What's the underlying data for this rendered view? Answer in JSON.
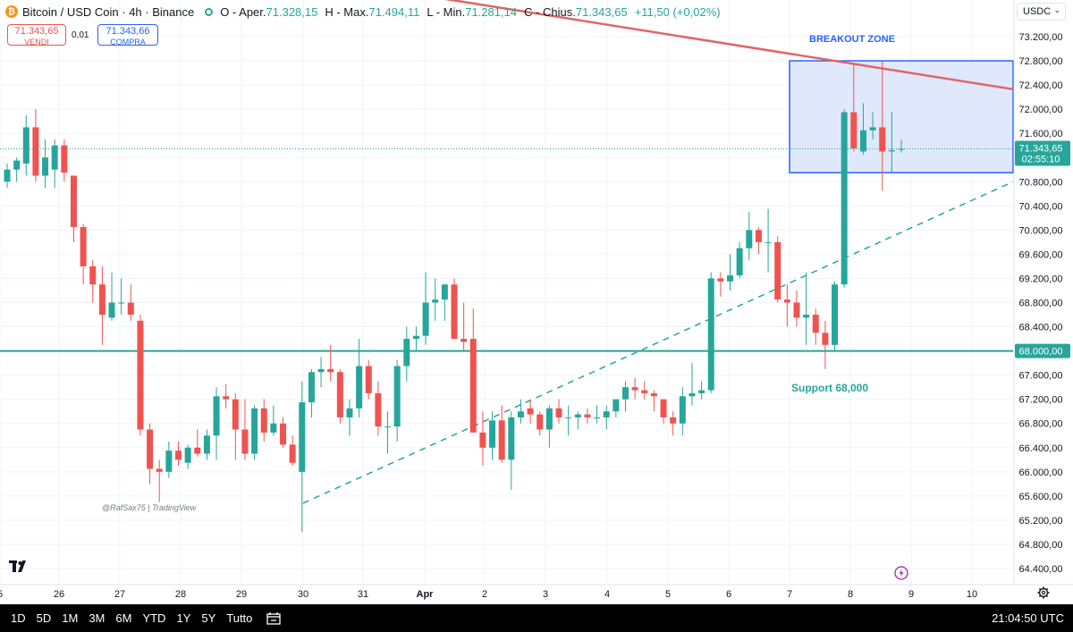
{
  "legend": {
    "symbol": "Bitcoin / USD Coin · 4h · Binance",
    "open_label": "O - Aper.",
    "open": "71.328,15",
    "high_label": "H - Max.",
    "high": "71.494,11",
    "low_label": "L - Min.",
    "low": "71.281,14",
    "close_label": "C - Chius.",
    "close": "71.343,65",
    "change": "+11,50 (+0,02%)"
  },
  "trade": {
    "sell_price": "71.343,65",
    "sell_label": "VENDI",
    "spread": "0,01",
    "buy_price": "71.343,66",
    "buy_label": "COMPRA"
  },
  "currency": "USDC",
  "price_axis": {
    "ticks": [
      "73.200,00",
      "72.800,00",
      "72.400,00",
      "72.000,00",
      "71.600,00",
      "70.800,00",
      "70.400,00",
      "70.000,00",
      "69.600,00",
      "69.200,00",
      "68.800,00",
      "68.400,00",
      "67.600,00",
      "67.200,00",
      "66.800,00",
      "66.400,00",
      "66.000,00",
      "65.600,00",
      "65.200,00",
      "64.800,00",
      "64.400,00"
    ],
    "last_price_label": "71.343,65",
    "countdown": "02:55:10",
    "support_label": "68.000,00"
  },
  "time_axis": {
    "labels": [
      "5",
      "26",
      "27",
      "28",
      "29",
      "30",
      "31",
      "Apr",
      "2",
      "3",
      "4",
      "5",
      "6",
      "7",
      "8",
      "9",
      "10"
    ]
  },
  "annotations": {
    "breakout": "BREAKOUT ZONE",
    "support": "Support 68,000",
    "watermark": "@RafSax75 | TradingView"
  },
  "bottom_bar": {
    "timeframes": [
      "1D",
      "5D",
      "1M",
      "3M",
      "6M",
      "YTD",
      "1Y",
      "5Y",
      "Tutto"
    ],
    "clock": "21:04:50 UTC"
  },
  "colors": {
    "up": "#26a69a",
    "down": "#ef5350",
    "resistance": "#e06666",
    "zone_fill": "#dbe4fb",
    "zone_border": "#2962ff",
    "support": "#26a69a"
  },
  "chart_data": {
    "type": "candlestick",
    "title": "Bitcoin / USD Coin · 4h · Binance",
    "interval": "4h",
    "ylim": [
      64200,
      73400
    ],
    "x_ticks": [
      "26",
      "27",
      "28",
      "29",
      "30",
      "31",
      "Apr",
      "2",
      "3",
      "4",
      "5",
      "6",
      "7",
      "8",
      "9",
      "10"
    ],
    "candles": [
      {
        "o": 70800,
        "h": 71100,
        "l": 70700,
        "c": 71000
      },
      {
        "o": 71000,
        "h": 71200,
        "l": 70800,
        "c": 71150
      },
      {
        "o": 71100,
        "h": 71900,
        "l": 70900,
        "c": 71700
      },
      {
        "o": 71700,
        "h": 72000,
        "l": 70800,
        "c": 70900
      },
      {
        "o": 70900,
        "h": 71500,
        "l": 70700,
        "c": 71200
      },
      {
        "o": 71000,
        "h": 71500,
        "l": 70700,
        "c": 71400
      },
      {
        "o": 71400,
        "h": 71500,
        "l": 70800,
        "c": 70950
      },
      {
        "o": 70900,
        "h": 70900,
        "l": 69800,
        "c": 70050
      },
      {
        "o": 70050,
        "h": 70100,
        "l": 69100,
        "c": 69400
      },
      {
        "o": 69400,
        "h": 69500,
        "l": 68800,
        "c": 69100
      },
      {
        "o": 69100,
        "h": 69400,
        "l": 68100,
        "c": 68600
      },
      {
        "o": 68550,
        "h": 69300,
        "l": 68500,
        "c": 68800
      },
      {
        "o": 68800,
        "h": 69200,
        "l": 68600,
        "c": 68800
      },
      {
        "o": 68800,
        "h": 69100,
        "l": 68500,
        "c": 68600
      },
      {
        "o": 68500,
        "h": 68600,
        "l": 66600,
        "c": 66700
      },
      {
        "o": 66700,
        "h": 66800,
        "l": 65800,
        "c": 66050
      },
      {
        "o": 66050,
        "h": 66200,
        "l": 65500,
        "c": 66000
      },
      {
        "o": 66000,
        "h": 66500,
        "l": 65900,
        "c": 66350
      },
      {
        "o": 66350,
        "h": 66500,
        "l": 66100,
        "c": 66200
      },
      {
        "o": 66150,
        "h": 66450,
        "l": 66050,
        "c": 66400
      },
      {
        "o": 66400,
        "h": 66700,
        "l": 66250,
        "c": 66300
      },
      {
        "o": 66300,
        "h": 66700,
        "l": 66200,
        "c": 66600
      },
      {
        "o": 66600,
        "h": 67400,
        "l": 66200,
        "c": 67250
      },
      {
        "o": 67250,
        "h": 67450,
        "l": 67050,
        "c": 67200
      },
      {
        "o": 67200,
        "h": 67300,
        "l": 66200,
        "c": 66700
      },
      {
        "o": 66700,
        "h": 67200,
        "l": 66200,
        "c": 66300
      },
      {
        "o": 66300,
        "h": 67100,
        "l": 66200,
        "c": 67050
      },
      {
        "o": 67050,
        "h": 67200,
        "l": 66500,
        "c": 66650
      },
      {
        "o": 66650,
        "h": 67100,
        "l": 66600,
        "c": 66800
      },
      {
        "o": 66800,
        "h": 66900,
        "l": 66400,
        "c": 66450
      },
      {
        "o": 66450,
        "h": 66600,
        "l": 66100,
        "c": 66150
      },
      {
        "o": 66000,
        "h": 67500,
        "l": 65000,
        "c": 67150
      },
      {
        "o": 67150,
        "h": 67700,
        "l": 66900,
        "c": 67650
      },
      {
        "o": 67650,
        "h": 67900,
        "l": 67400,
        "c": 67700
      },
      {
        "o": 67700,
        "h": 68100,
        "l": 67500,
        "c": 67650
      },
      {
        "o": 67650,
        "h": 67700,
        "l": 66800,
        "c": 66900
      },
      {
        "o": 66900,
        "h": 67200,
        "l": 66600,
        "c": 67050
      },
      {
        "o": 67050,
        "h": 68200,
        "l": 66900,
        "c": 67750
      },
      {
        "o": 67750,
        "h": 67850,
        "l": 67200,
        "c": 67300
      },
      {
        "o": 67300,
        "h": 67500,
        "l": 66600,
        "c": 66750
      },
      {
        "o": 66750,
        "h": 67000,
        "l": 66300,
        "c": 66750
      },
      {
        "o": 66750,
        "h": 67850,
        "l": 66500,
        "c": 67750
      },
      {
        "o": 67750,
        "h": 68400,
        "l": 67500,
        "c": 68200
      },
      {
        "o": 68200,
        "h": 68400,
        "l": 68000,
        "c": 68250
      },
      {
        "o": 68250,
        "h": 69300,
        "l": 68100,
        "c": 68800
      },
      {
        "o": 68800,
        "h": 69200,
        "l": 68500,
        "c": 68850
      },
      {
        "o": 68850,
        "h": 69100,
        "l": 68500,
        "c": 69100
      },
      {
        "o": 69100,
        "h": 69200,
        "l": 68200,
        "c": 68200
      },
      {
        "o": 68200,
        "h": 68800,
        "l": 68000,
        "c": 68150
      },
      {
        "o": 68200,
        "h": 68700,
        "l": 66700,
        "c": 66650
      },
      {
        "o": 66650,
        "h": 67000,
        "l": 66100,
        "c": 66400
      },
      {
        "o": 66400,
        "h": 67000,
        "l": 66200,
        "c": 66850
      },
      {
        "o": 66850,
        "h": 67100,
        "l": 66150,
        "c": 66200
      },
      {
        "o": 66200,
        "h": 67000,
        "l": 65700,
        "c": 66900
      },
      {
        "o": 66900,
        "h": 67200,
        "l": 66800,
        "c": 67000
      },
      {
        "o": 67050,
        "h": 67200,
        "l": 66800,
        "c": 66950
      },
      {
        "o": 66950,
        "h": 67000,
        "l": 66600,
        "c": 66700
      },
      {
        "o": 66700,
        "h": 67100,
        "l": 66400,
        "c": 67050
      },
      {
        "o": 67050,
        "h": 67200,
        "l": 66800,
        "c": 66900
      },
      {
        "o": 66900,
        "h": 67100,
        "l": 66600,
        "c": 66900
      },
      {
        "o": 66900,
        "h": 67000,
        "l": 66700,
        "c": 66950
      },
      {
        "o": 66950,
        "h": 67050,
        "l": 66800,
        "c": 66900
      },
      {
        "o": 66900,
        "h": 67100,
        "l": 66800,
        "c": 66900
      },
      {
        "o": 66900,
        "h": 67100,
        "l": 66700,
        "c": 67000
      },
      {
        "o": 67000,
        "h": 67200,
        "l": 66900,
        "c": 67200
      },
      {
        "o": 67200,
        "h": 67500,
        "l": 67000,
        "c": 67400
      },
      {
        "o": 67400,
        "h": 67550,
        "l": 67200,
        "c": 67350
      },
      {
        "o": 67350,
        "h": 67500,
        "l": 67200,
        "c": 67300
      },
      {
        "o": 67300,
        "h": 67350,
        "l": 67000,
        "c": 67250
      },
      {
        "o": 67200,
        "h": 67200,
        "l": 66800,
        "c": 66900
      },
      {
        "o": 66900,
        "h": 67000,
        "l": 66600,
        "c": 66800
      },
      {
        "o": 66800,
        "h": 67400,
        "l": 66600,
        "c": 67250
      },
      {
        "o": 67250,
        "h": 67800,
        "l": 67100,
        "c": 67300
      },
      {
        "o": 67300,
        "h": 67500,
        "l": 67200,
        "c": 67350
      },
      {
        "o": 67350,
        "h": 69300,
        "l": 67300,
        "c": 69200
      },
      {
        "o": 69200,
        "h": 69300,
        "l": 68900,
        "c": 69150
      },
      {
        "o": 69150,
        "h": 69600,
        "l": 69000,
        "c": 69250
      },
      {
        "o": 69250,
        "h": 69800,
        "l": 69200,
        "c": 69700
      },
      {
        "o": 69700,
        "h": 70300,
        "l": 69500,
        "c": 70000
      },
      {
        "o": 70000,
        "h": 70050,
        "l": 69600,
        "c": 69800
      },
      {
        "o": 69800,
        "h": 70350,
        "l": 69300,
        "c": 69800
      },
      {
        "o": 69800,
        "h": 69900,
        "l": 68800,
        "c": 68850
      },
      {
        "o": 68850,
        "h": 69100,
        "l": 68400,
        "c": 68800
      },
      {
        "o": 68800,
        "h": 69000,
        "l": 68400,
        "c": 68550
      },
      {
        "o": 68550,
        "h": 69300,
        "l": 68100,
        "c": 68600
      },
      {
        "o": 68600,
        "h": 68700,
        "l": 68100,
        "c": 68300
      },
      {
        "o": 68300,
        "h": 68500,
        "l": 67700,
        "c": 68100
      },
      {
        "o": 68100,
        "h": 69150,
        "l": 68000,
        "c": 69100
      },
      {
        "o": 69100,
        "h": 72000,
        "l": 69050,
        "c": 71950
      },
      {
        "o": 71950,
        "h": 72750,
        "l": 71300,
        "c": 71350
      },
      {
        "o": 71300,
        "h": 72100,
        "l": 71250,
        "c": 71650
      },
      {
        "o": 71650,
        "h": 71950,
        "l": 71500,
        "c": 71700
      },
      {
        "o": 71700,
        "h": 72800,
        "l": 70650,
        "c": 71300
      },
      {
        "o": 71300,
        "h": 71950,
        "l": 70950,
        "c": 71320
      },
      {
        "o": 71328.15,
        "h": 71494.11,
        "l": 71281.14,
        "c": 71343.65
      }
    ],
    "support_level": 68000,
    "resistance_line": {
      "from": [
        0,
        74000
      ],
      "to": [
        111,
        72300
      ]
    },
    "rising_trendline": {
      "from": [
        31,
        65450
      ],
      "to": [
        111,
        70800
      ]
    },
    "breakout_zone": {
      "y_top": 72800,
      "y_bottom": 70950,
      "x_from": 82,
      "x_to": 111
    }
  }
}
